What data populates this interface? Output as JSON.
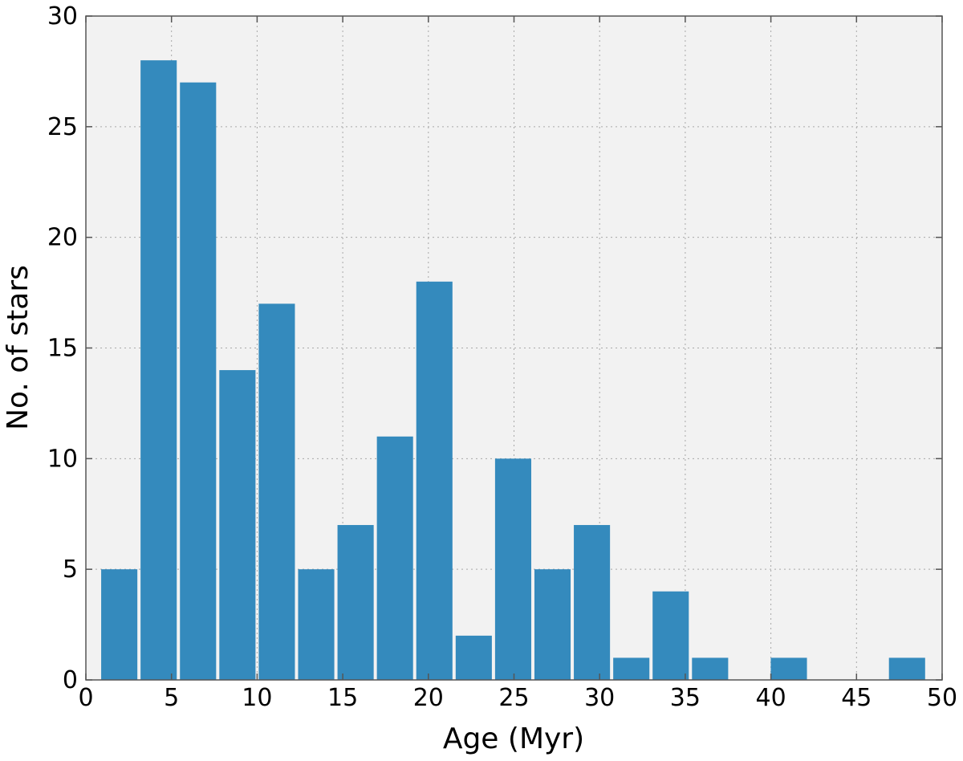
{
  "chart_data": {
    "type": "bar",
    "title": "",
    "xlabel": "Age (Myr)",
    "ylabel": "No. of stars",
    "xlim": [
      0,
      50
    ],
    "ylim": [
      0,
      30
    ],
    "xticks": [
      "0",
      "5",
      "10",
      "15",
      "20",
      "25",
      "30",
      "35",
      "40",
      "45",
      "50"
    ],
    "yticks": [
      "0",
      "5",
      "10",
      "15",
      "20",
      "25",
      "30"
    ],
    "grid": true,
    "bin_width": 2.3,
    "bins": [
      {
        "x": 0.8,
        "value": 5
      },
      {
        "x": 3.1,
        "value": 28
      },
      {
        "x": 5.4,
        "value": 27
      },
      {
        "x": 7.7,
        "value": 14
      },
      {
        "x": 10.0,
        "value": 17
      },
      {
        "x": 12.3,
        "value": 5
      },
      {
        "x": 14.6,
        "value": 7
      },
      {
        "x": 16.9,
        "value": 11
      },
      {
        "x": 19.2,
        "value": 18
      },
      {
        "x": 21.5,
        "value": 2
      },
      {
        "x": 23.8,
        "value": 10
      },
      {
        "x": 26.1,
        "value": 5
      },
      {
        "x": 28.4,
        "value": 7
      },
      {
        "x": 30.7,
        "value": 1
      },
      {
        "x": 33.0,
        "value": 4
      },
      {
        "x": 35.3,
        "value": 1
      },
      {
        "x": 37.6,
        "value": 0
      },
      {
        "x": 39.9,
        "value": 1
      },
      {
        "x": 42.2,
        "value": 0
      },
      {
        "x": 44.5,
        "value": 0
      },
      {
        "x": 46.8,
        "value": 1
      }
    ],
    "colors": {
      "bar": "#348abd",
      "plot_background": "#f2f2f2",
      "grid": "#a8a8a8",
      "axes": "#555555"
    }
  }
}
